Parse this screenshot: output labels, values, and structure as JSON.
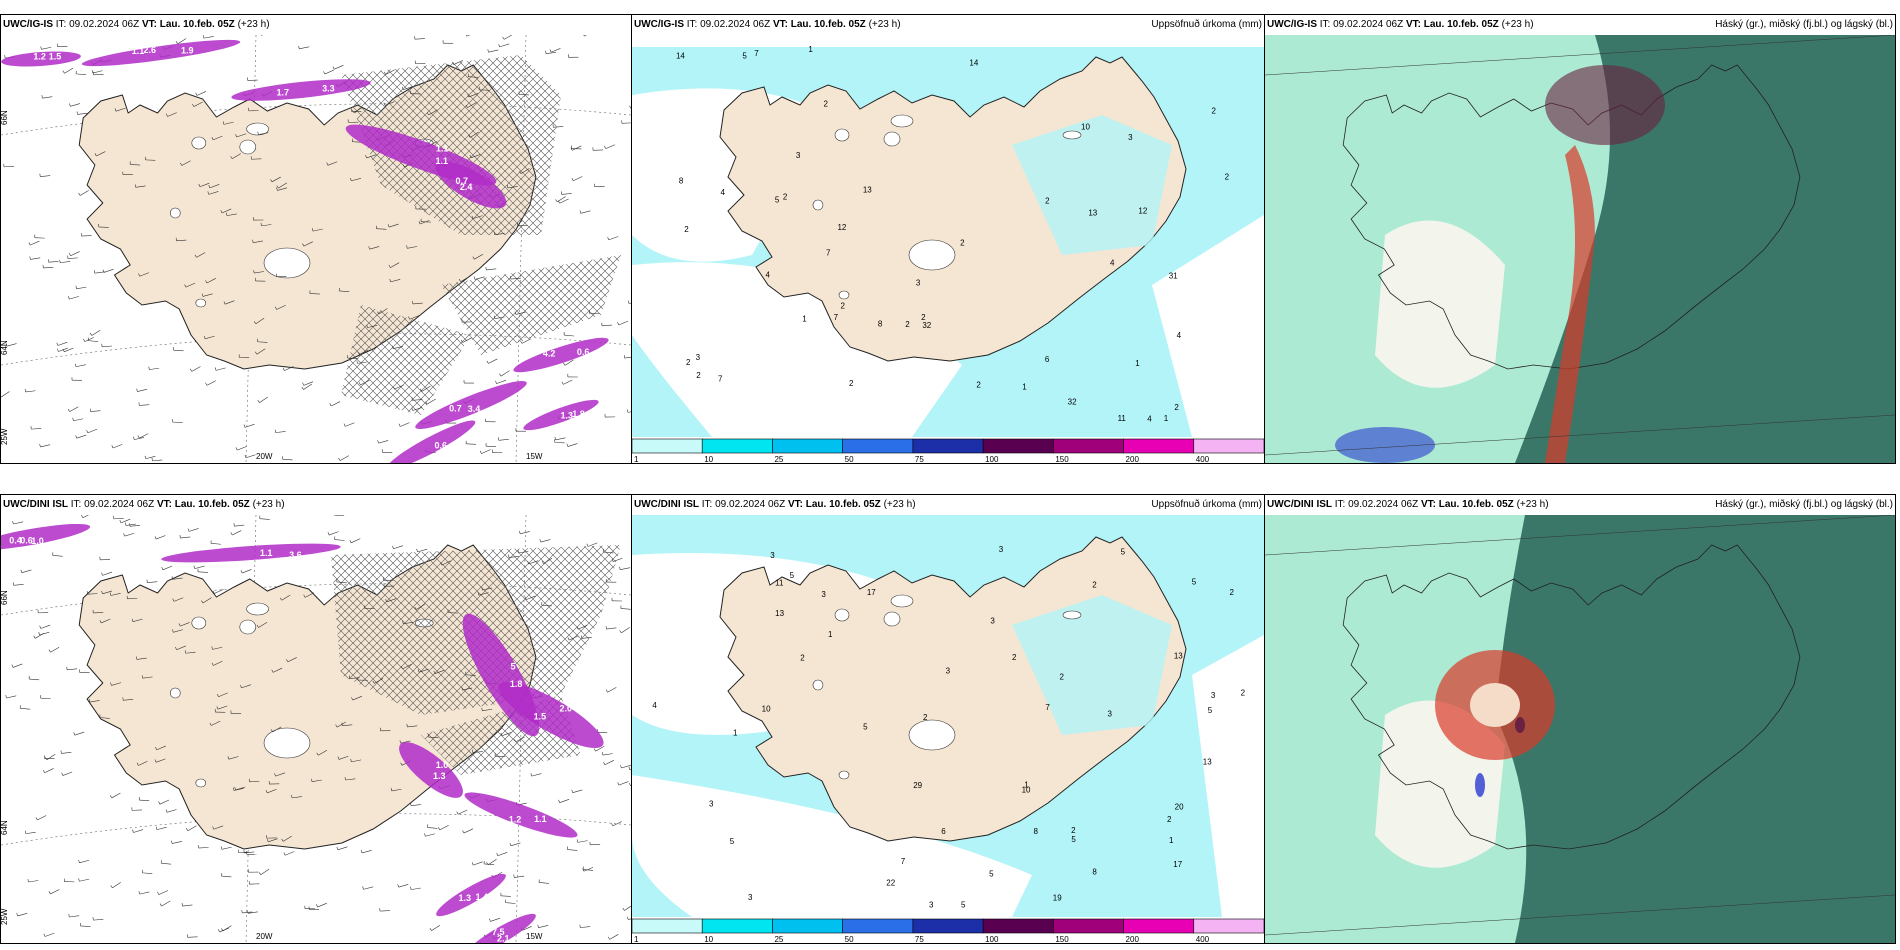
{
  "row1": {
    "p1": {
      "model": "UWC/IG-IS",
      "it_label": "IT:",
      "it": "09.02.2024 06Z",
      "vt_label": "VT:",
      "vt": "Lau. 10.feb. 05Z",
      "offset": "(+23 h)",
      "lon_labels": [
        "20W",
        "15W"
      ],
      "lat_labels": [
        "66N",
        "64N",
        "25W"
      ],
      "values": [
        "2.6",
        "3.3",
        "1.1",
        "0.7",
        "0.6",
        "0.7",
        "0.8",
        "1.3",
        "1.5",
        "1.9",
        "1.7",
        "1.1",
        "2.4",
        "4.2",
        "3.4",
        "0.6",
        "1.8",
        "1.2",
        "1.1"
      ]
    },
    "p2": {
      "model": "UWC/IG-IS",
      "it_label": "IT:",
      "it": "09.02.2024 06Z",
      "vt_label": "VT:",
      "vt": "Lau. 10.feb. 05Z",
      "offset": "(+23 h)",
      "title": "Uppsöfnuð úrkoma (mm)",
      "numbers": [
        "3",
        "5",
        "5",
        "4",
        "1",
        "2",
        "2",
        "7",
        "7",
        "13",
        "12",
        "14",
        "14",
        "11",
        "12",
        "6",
        "2",
        "2",
        "2",
        "13",
        "4",
        "2",
        "1",
        "1",
        "1",
        "2",
        "2",
        "3",
        "3",
        "2",
        "2",
        "8",
        "7",
        "4",
        "10",
        "8",
        "4",
        "7",
        "4",
        "2",
        "2",
        "2",
        "31",
        "32",
        "32",
        "2",
        "2",
        "3",
        "1"
      ]
    },
    "p3": {
      "model": "UWC/IG-IS",
      "it_label": "IT:",
      "it": "09.02.2024 06Z",
      "vt_label": "VT:",
      "vt": "Lau. 10.feb. 05Z",
      "offset": "(+23 h)",
      "title": "Háský (gr.), miðský (fj.bl.) og lágský (bl.)"
    }
  },
  "row2": {
    "p1": {
      "model": "UWC/DINI ISL",
      "it_label": "IT:",
      "it": "09.02.2024 06Z",
      "vt_label": "VT:",
      "vt": "Lau. 10.feb. 05Z",
      "offset": "(+23 h)",
      "lon_labels": [
        "20W",
        "15W"
      ],
      "lat_labels": [
        "66N",
        "64N",
        "25W"
      ],
      "values": [
        "0.6",
        "1.1",
        "1.8",
        "2.0",
        "1.0",
        "1.1",
        "2.1",
        "1.3",
        "0.4",
        "3.6",
        "5",
        "1.5",
        "1.3",
        "1.2",
        "7.5",
        "1.4",
        "1.0"
      ]
    },
    "p2": {
      "model": "UWC/DINI ISL",
      "it_label": "IT:",
      "it": "09.02.2024 06Z",
      "vt_label": "VT:",
      "vt": "Lau. 10.feb. 05Z",
      "offset": "(+23 h)",
      "title": "Uppsöfnuð úrkoma (mm)",
      "numbers": [
        "8",
        "10",
        "13",
        "7",
        "17",
        "13",
        "1",
        "5",
        "5",
        "2",
        "2",
        "3",
        "2",
        "3",
        "2",
        "2",
        "1",
        "8",
        "6",
        "5",
        "5",
        "1",
        "11",
        "10",
        "17",
        "22",
        "20",
        "3",
        "5",
        "3",
        "2",
        "2",
        "2",
        "3",
        "3",
        "5",
        "4",
        "3",
        "3",
        "2",
        "3",
        "5",
        "3",
        "7",
        "5",
        "1",
        "19",
        "29",
        "13",
        "5"
      ]
    },
    "p3": {
      "model": "UWC/DINI ISL",
      "it_label": "IT:",
      "it": "09.02.2024 06Z",
      "vt_label": "VT:",
      "vt": "Lau. 10.feb. 05Z",
      "offset": "(+23 h)",
      "title": "Háský (gr.), miðský (fj.bl.) og lágský (bl.)"
    }
  },
  "colorbar": {
    "ticks": [
      "1",
      "10",
      "25",
      "50",
      "75",
      "100",
      "150",
      "200",
      "400"
    ],
    "colors": [
      "#c8fafa",
      "#00e5f0",
      "#00c0f0",
      "#2a6ee8",
      "#1c2ea8",
      "#5a0050",
      "#a0007a",
      "#e800b4",
      "#f4b4f4"
    ]
  },
  "colors": {
    "land": "#f5e6d3",
    "precip_light": "#b2f4f8",
    "wind_purple": "#b02cc8",
    "cloud_high": "#1fd79a",
    "cloud_mid": "#2e6a5c",
    "cloud_low": "#2a3ad0",
    "cloud_red": "#d83a2a"
  }
}
